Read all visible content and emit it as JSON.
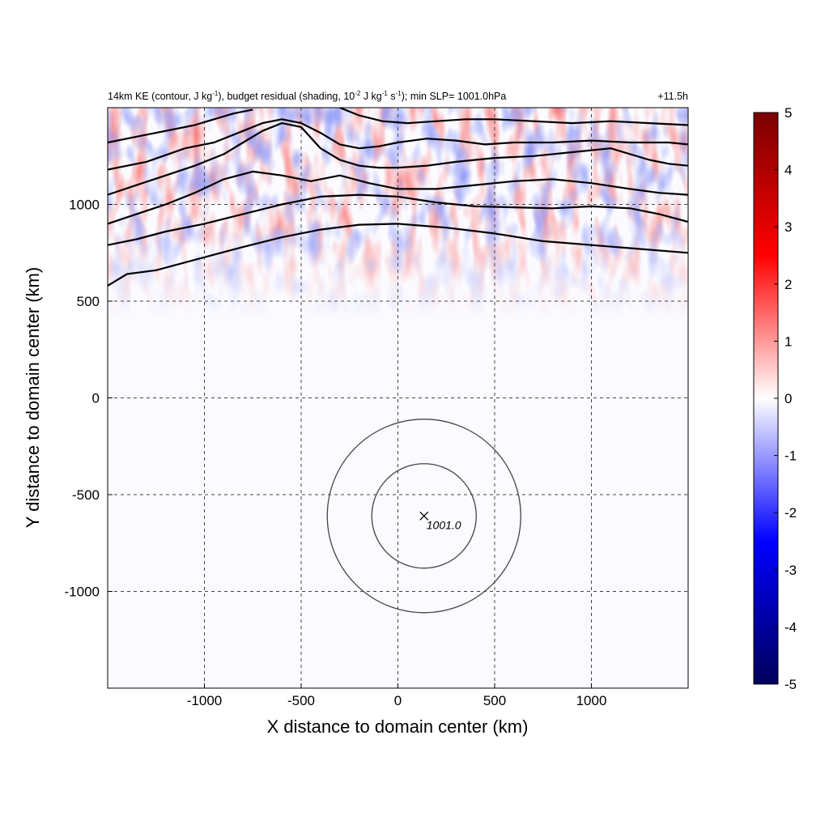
{
  "chart_data": {
    "type": "heatmap",
    "title_parts": {
      "p1": "14km KE (contour, J kg",
      "sup1": "-1",
      "p2": "), budget residual (shading, 10",
      "sup2": "-2",
      "p3": " J kg",
      "sup3": "-1",
      "p4": " s",
      "sup4": "-1",
      "p5": "); min SLP= 1001.0hPa"
    },
    "time_label": "+11.5h",
    "xlabel": "X distance to domain center (km)",
    "ylabel": "Y distance to domain center (km)",
    "xlim": [
      -1500,
      1500
    ],
    "ylim": [
      -1500,
      1500
    ],
    "x_ticks": [
      -1000,
      -500,
      0,
      500,
      1000
    ],
    "y_ticks": [
      1000,
      500,
      0,
      -500,
      -1000
    ],
    "x_tick_labels": [
      "-1000",
      "-500",
      "0",
      "500",
      "1000"
    ],
    "y_tick_labels": [
      "1000",
      "500",
      "0",
      "-500",
      "-1000"
    ],
    "grid": true,
    "storm_center": {
      "x": 135,
      "y": -610,
      "label": "1001.0"
    },
    "range_rings_km": [
      270,
      500
    ],
    "colorbar": {
      "min": -5,
      "max": 5,
      "ticks": [
        5,
        4,
        3,
        2,
        1,
        0,
        -1,
        -2,
        -3,
        -4,
        -5
      ],
      "tick_labels": [
        "5",
        "4",
        "3",
        "2",
        "1",
        "0",
        "-1",
        "-2",
        "-3",
        "-4",
        "-5"
      ],
      "colors": [
        "#00005a",
        "#0000ff",
        "#ffffff",
        "#ff0000",
        "#7a0000"
      ]
    },
    "ke_contours": [
      {
        "points": [
          [
            -1500,
            580
          ],
          [
            -1400,
            640
          ],
          [
            -1250,
            660
          ],
          [
            -1100,
            700
          ],
          [
            -950,
            740
          ],
          [
            -800,
            780
          ],
          [
            -600,
            830
          ],
          [
            -400,
            870
          ],
          [
            -200,
            895
          ],
          [
            0,
            900
          ],
          [
            250,
            880
          ],
          [
            500,
            850
          ],
          [
            750,
            810
          ],
          [
            1000,
            790
          ],
          [
            1250,
            770
          ],
          [
            1500,
            750
          ]
        ]
      },
      {
        "points": [
          [
            -1500,
            790
          ],
          [
            -1350,
            820
          ],
          [
            -1200,
            860
          ],
          [
            -1000,
            900
          ],
          [
            -800,
            950
          ],
          [
            -600,
            1000
          ],
          [
            -400,
            1040
          ],
          [
            -200,
            1050
          ],
          [
            0,
            1040
          ],
          [
            200,
            1010
          ],
          [
            400,
            990
          ],
          [
            600,
            985
          ],
          [
            800,
            980
          ],
          [
            1000,
            990
          ],
          [
            1200,
            980
          ],
          [
            1350,
            950
          ],
          [
            1500,
            910
          ]
        ]
      },
      {
        "points": [
          [
            -1500,
            900
          ],
          [
            -1350,
            950
          ],
          [
            -1200,
            1000
          ],
          [
            -1050,
            1060
          ],
          [
            -900,
            1130
          ],
          [
            -750,
            1170
          ],
          [
            -600,
            1150
          ],
          [
            -450,
            1120
          ],
          [
            -300,
            1150
          ],
          [
            -150,
            1110
          ],
          [
            0,
            1080
          ],
          [
            200,
            1080
          ],
          [
            400,
            1100
          ],
          [
            600,
            1120
          ],
          [
            800,
            1130
          ],
          [
            1000,
            1110
          ],
          [
            1200,
            1080
          ],
          [
            1350,
            1060
          ],
          [
            1500,
            1050
          ]
        ]
      },
      {
        "points": [
          [
            -1500,
            1050
          ],
          [
            -1350,
            1100
          ],
          [
            -1200,
            1150
          ],
          [
            -1050,
            1200
          ],
          [
            -900,
            1260
          ],
          [
            -800,
            1320
          ],
          [
            -700,
            1380
          ],
          [
            -600,
            1420
          ],
          [
            -500,
            1400
          ],
          [
            -400,
            1290
          ],
          [
            -300,
            1230
          ],
          [
            -200,
            1200
          ],
          [
            -100,
            1190
          ],
          [
            0,
            1190
          ],
          [
            150,
            1200
          ],
          [
            300,
            1220
          ],
          [
            500,
            1240
          ],
          [
            700,
            1250
          ],
          [
            900,
            1270
          ],
          [
            1100,
            1290
          ],
          [
            1300,
            1230
          ],
          [
            1400,
            1210
          ],
          [
            1500,
            1200
          ]
        ]
      },
      {
        "points": [
          [
            -1500,
            1180
          ],
          [
            -1300,
            1220
          ],
          [
            -1100,
            1290
          ],
          [
            -950,
            1320
          ],
          [
            -800,
            1380
          ],
          [
            -700,
            1420
          ],
          [
            -600,
            1440
          ],
          [
            -500,
            1420
          ],
          [
            -400,
            1370
          ],
          [
            -300,
            1310
          ],
          [
            -200,
            1290
          ],
          [
            -100,
            1300
          ],
          [
            0,
            1320
          ],
          [
            150,
            1340
          ],
          [
            300,
            1330
          ],
          [
            450,
            1310
          ],
          [
            600,
            1320
          ],
          [
            800,
            1320
          ],
          [
            1000,
            1330
          ],
          [
            1200,
            1320
          ],
          [
            1400,
            1320
          ],
          [
            1500,
            1310
          ]
        ]
      },
      {
        "points": [
          [
            -1500,
            1320
          ],
          [
            -1350,
            1350
          ],
          [
            -1200,
            1380
          ],
          [
            -1050,
            1410
          ],
          [
            -950,
            1440
          ],
          [
            -850,
            1470
          ],
          [
            -750,
            1490
          ]
        ]
      },
      {
        "points": [
          [
            -300,
            1500
          ],
          [
            -200,
            1460
          ],
          [
            -80,
            1430
          ],
          [
            50,
            1420
          ],
          [
            200,
            1430
          ],
          [
            350,
            1440
          ],
          [
            500,
            1440
          ],
          [
            700,
            1430
          ],
          [
            900,
            1420
          ],
          [
            1100,
            1430
          ],
          [
            1300,
            1420
          ],
          [
            1500,
            1410
          ]
        ]
      }
    ]
  }
}
